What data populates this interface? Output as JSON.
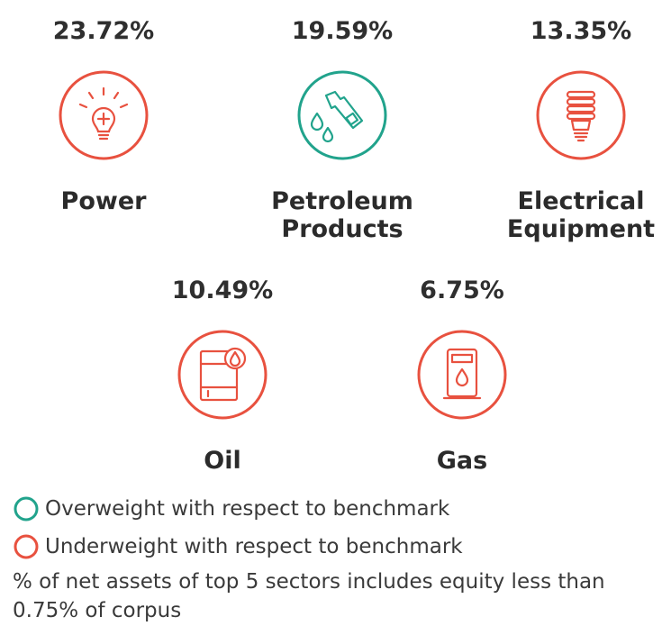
{
  "colors": {
    "overweight": "#21a38c",
    "underweight": "#e8513f",
    "text": "#2b2b2b"
  },
  "chart_data": {
    "type": "table",
    "sectors": [
      {
        "name": "Power",
        "value": "23.72%",
        "status": "underweight",
        "icon": "lightbulb-icon"
      },
      {
        "name": "Petroleum Products",
        "value": "19.59%",
        "status": "overweight",
        "icon": "fuel-nozzle-icon"
      },
      {
        "name": "Electrical Equipment",
        "value": "13.35%",
        "status": "underweight",
        "icon": "cfl-bulb-icon"
      },
      {
        "name": "Oil",
        "value": "10.49%",
        "status": "underweight",
        "icon": "oil-barrel-icon"
      },
      {
        "name": "Gas",
        "value": "6.75%",
        "status": "underweight",
        "icon": "gas-pump-icon"
      }
    ],
    "legend": [
      {
        "label": "Overweight with respect to benchmark",
        "color": "#21a38c"
      },
      {
        "label": "Underweight with respect to benchmark",
        "color": "#e8513f"
      }
    ],
    "note": "% of net assets of top 5 sectors includes equity less than 0.75% of corpus"
  }
}
